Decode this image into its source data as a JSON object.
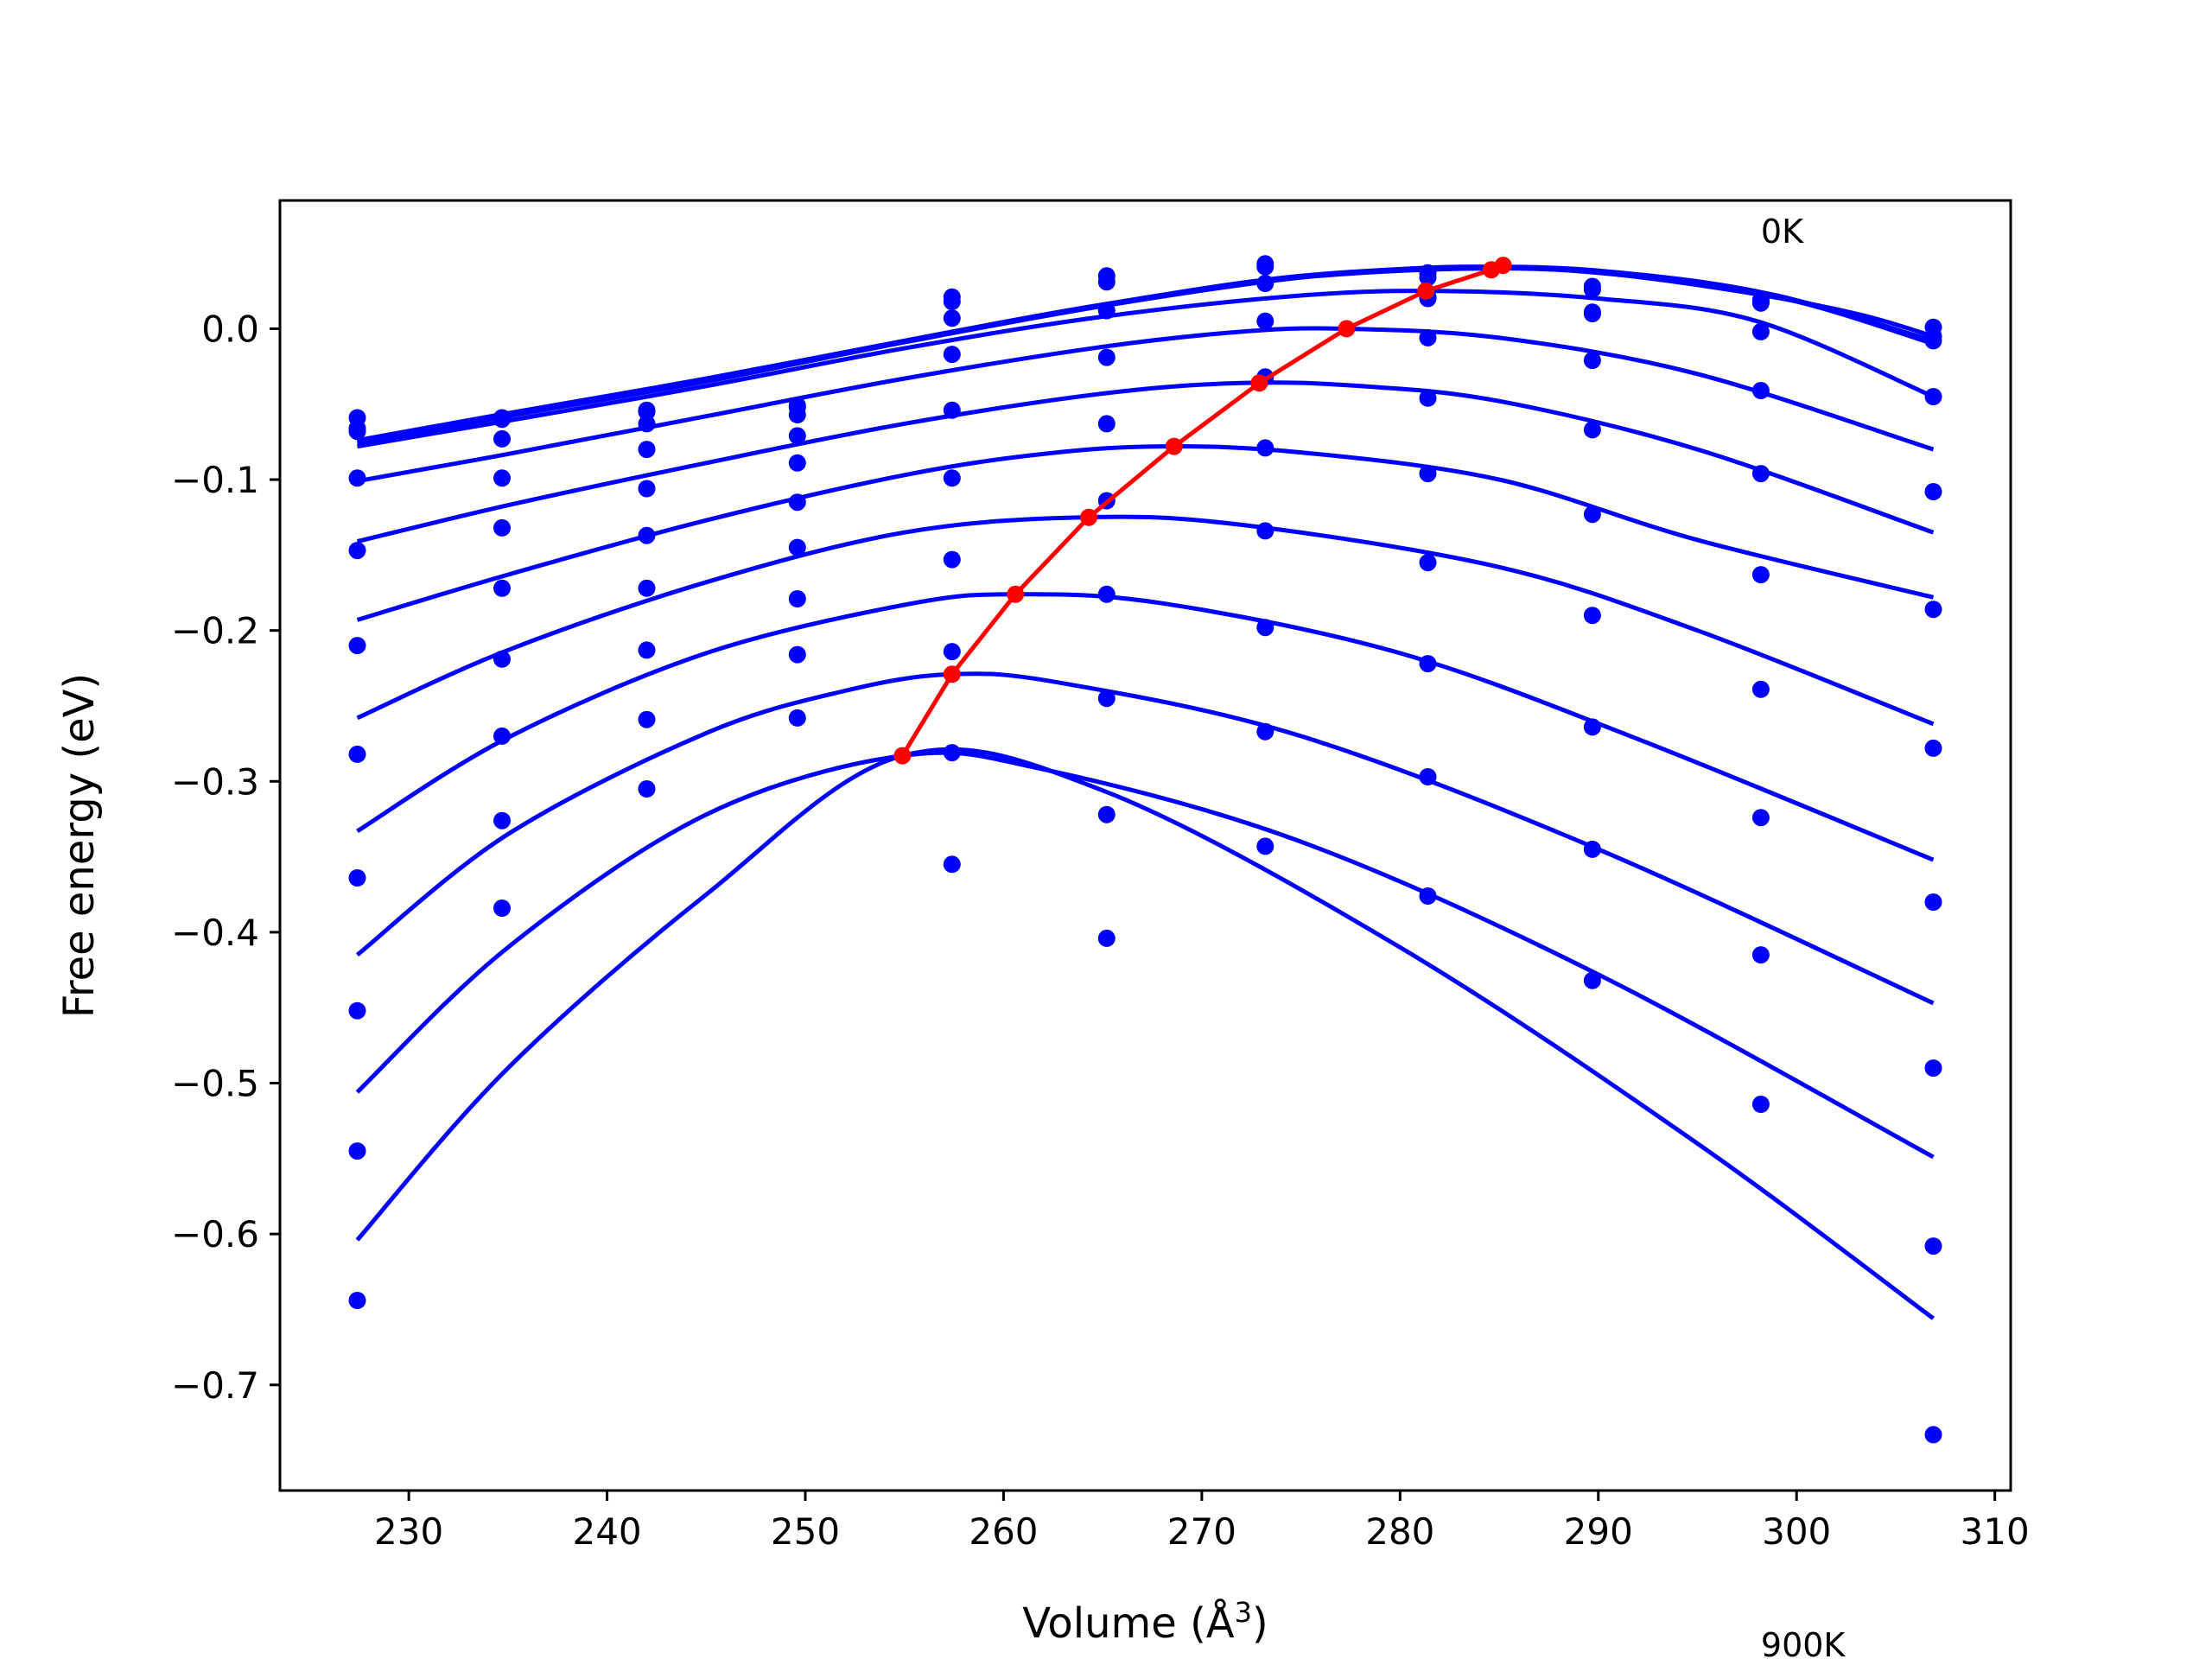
{
  "chart_data": {
    "type": "scatter",
    "title": "",
    "xlabel": "Volume (Å",
    "xlabel_sup": "3",
    "xlabel_close": ")",
    "ylabel": "Free energy (eV)",
    "xlim": [
      223.5,
      310.8
    ],
    "ylim": [
      -0.77,
      0.085
    ],
    "x_ticks": [
      230,
      240,
      250,
      260,
      270,
      280,
      290,
      300,
      310
    ],
    "x_tick_labels": [
      "230",
      "240",
      "250",
      "260",
      "270",
      "280",
      "290",
      "300",
      "310"
    ],
    "y_ticks": [
      0.0,
      -0.1,
      -0.2,
      -0.3,
      -0.4,
      -0.5,
      -0.6,
      -0.7
    ],
    "y_tick_labels": [
      "0.0",
      "−0.1",
      "−0.2",
      "−0.3",
      "−0.4",
      "−0.5",
      "−0.6",
      "−0.7"
    ],
    "grid": false,
    "annotations": [
      {
        "text": "0K",
        "x": 298.2,
        "y": 0.057
      },
      {
        "text": "900K",
        "x": 298.2,
        "y": -0.88
      }
    ],
    "volumes": [
      227.4,
      234.7,
      242.0,
      249.6,
      257.4,
      265.2,
      273.2,
      281.4,
      289.7,
      298.2,
      306.9
    ],
    "curves": [
      {
        "points": [
          [
            227.4,
            -0.076
          ],
          [
            235,
            -0.058
          ],
          [
            245,
            -0.035
          ],
          [
            255,
            -0.009
          ],
          [
            265,
            0.015
          ],
          [
            275,
            0.034
          ],
          [
            283,
            0.041
          ],
          [
            290,
            0.037
          ],
          [
            297,
            0.025
          ],
          [
            303,
            0.01
          ],
          [
            306.9,
            -0.005
          ]
        ],
        "markers": [
          -0.059,
          -0.059,
          -0.054,
          -0.052,
          0.021,
          0.035,
          0.043,
          0.037,
          0.028,
          0.019,
          0.001
        ]
      },
      {
        "points": [
          [
            227.4,
            -0.075
          ],
          [
            235,
            -0.057
          ],
          [
            245,
            -0.034
          ],
          [
            255,
            -0.008
          ],
          [
            265,
            0.016
          ],
          [
            275,
            0.035
          ],
          [
            285,
            0.041
          ],
          [
            292,
            0.036
          ],
          [
            299,
            0.022
          ],
          [
            306.9,
            -0.008
          ]
        ],
        "markers": [
          -0.066,
          -0.06,
          -0.055,
          -0.051,
          0.018,
          0.031,
          0.041,
          0.034,
          0.026,
          0.018,
          -0.005
        ]
      },
      {
        "points": [
          [
            227.4,
            -0.074
          ],
          [
            235,
            -0.056
          ],
          [
            245,
            -0.033
          ],
          [
            255,
            -0.008
          ],
          [
            265,
            0.016
          ],
          [
            275,
            0.034
          ],
          [
            285,
            0.04
          ],
          [
            293,
            0.034
          ],
          [
            300,
            0.018
          ],
          [
            306.9,
            -0.01
          ]
        ],
        "markers": [
          -0.068,
          -0.073,
          -0.063,
          -0.057,
          0.007,
          0.012,
          0.03,
          0.021,
          0.011,
          0.017,
          -0.008
        ]
      },
      {
        "points": [
          [
            227.4,
            -0.078
          ],
          [
            235,
            -0.061
          ],
          [
            245,
            -0.038
          ],
          [
            255,
            -0.013
          ],
          [
            265,
            0.008
          ],
          [
            275,
            0.022
          ],
          [
            282,
            0.025
          ],
          [
            290,
            0.02
          ],
          [
            298,
            0.005
          ],
          [
            306.9,
            -0.045
          ]
        ],
        "markers": [
          -0.099,
          -0.099,
          -0.08,
          -0.071,
          -0.017,
          -0.019,
          0.005,
          0.02,
          0.01,
          -0.002,
          -0.045
        ]
      },
      {
        "points": [
          [
            227.4,
            -0.101
          ],
          [
            235,
            -0.083
          ],
          [
            245,
            -0.058
          ],
          [
            255,
            -0.033
          ],
          [
            265,
            -0.012
          ],
          [
            272,
            -0.002
          ],
          [
            277,
            0.0
          ],
          [
            285,
            -0.006
          ],
          [
            295,
            -0.03
          ],
          [
            306.9,
            -0.08
          ]
        ],
        "markers": [
          -0.147,
          -0.132,
          -0.106,
          -0.089,
          -0.054,
          -0.063,
          -0.032,
          -0.006,
          -0.021,
          -0.041,
          -0.108
        ]
      },
      {
        "points": [
          [
            227.4,
            -0.141
          ],
          [
            235,
            -0.117
          ],
          [
            245,
            -0.089
          ],
          [
            255,
            -0.063
          ],
          [
            265,
            -0.043
          ],
          [
            272,
            -0.036
          ],
          [
            278,
            -0.038
          ],
          [
            285,
            -0.048
          ],
          [
            295,
            -0.08
          ],
          [
            306.9,
            -0.135
          ]
        ],
        "markers": [
          -0.21,
          -0.172,
          -0.137,
          -0.115,
          -0.099,
          -0.114,
          -0.079,
          -0.046,
          -0.067,
          -0.096,
          -0.186
        ]
      },
      {
        "points": [
          [
            227.4,
            -0.193
          ],
          [
            235,
            -0.163
          ],
          [
            245,
            -0.127
          ],
          [
            255,
            -0.097
          ],
          [
            262,
            -0.083
          ],
          [
            268,
            -0.078
          ],
          [
            275,
            -0.082
          ],
          [
            285,
            -0.1
          ],
          [
            295,
            -0.14
          ],
          [
            306.9,
            -0.178
          ]
        ],
        "markers": [
          -0.282,
          -0.219,
          -0.172,
          -0.145,
          -0.153,
          -0.176,
          -0.134,
          -0.096,
          -0.123,
          -0.163,
          -0.278
        ]
      },
      {
        "points": [
          [
            227.4,
            -0.258
          ],
          [
            235,
            -0.213
          ],
          [
            245,
            -0.168
          ],
          [
            255,
            -0.135
          ],
          [
            264,
            -0.125
          ],
          [
            272,
            -0.13
          ],
          [
            285,
            -0.158
          ],
          [
            295,
            -0.2
          ],
          [
            306.9,
            -0.262
          ]
        ],
        "markers": [
          -0.364,
          -0.27,
          -0.213,
          -0.179,
          -0.214,
          -0.245,
          -0.198,
          -0.155,
          -0.19,
          -0.239,
          -0.38
        ]
      },
      {
        "points": [
          [
            227.4,
            -0.333
          ],
          [
            235,
            -0.271
          ],
          [
            245,
            -0.215
          ],
          [
            255,
            -0.183
          ],
          [
            260.5,
            -0.176
          ],
          [
            268,
            -0.182
          ],
          [
            280,
            -0.215
          ],
          [
            292,
            -0.272
          ],
          [
            306.9,
            -0.352
          ]
        ],
        "markers": [
          -0.452,
          -0.326,
          -0.259,
          -0.216,
          -0.281,
          -0.322,
          -0.267,
          -0.222,
          -0.264,
          -0.324,
          -0.49
        ]
      },
      {
        "points": [
          [
            227.4,
            -0.415
          ],
          [
            235,
            -0.335
          ],
          [
            245,
            -0.268
          ],
          [
            252,
            -0.24
          ],
          [
            257.4,
            -0.229
          ],
          [
            263,
            -0.235
          ],
          [
            275,
            -0.27
          ],
          [
            290,
            -0.345
          ],
          [
            306.9,
            -0.447
          ]
        ],
        "markers": [
          -0.545,
          -0.384,
          -0.305,
          -0.258,
          -0.355,
          -0.404,
          -0.343,
          -0.297,
          -0.345,
          -0.415,
          -0.608
        ]
      },
      {
        "points": [
          [
            227.4,
            -0.506
          ],
          [
            235,
            -0.41
          ],
          [
            245,
            -0.322
          ],
          [
            254.9,
            -0.283
          ],
          [
            262,
            -0.292
          ],
          [
            275,
            -0.34
          ],
          [
            290,
            -0.428
          ],
          [
            306.9,
            -0.549
          ]
        ],
        "markers": [
          -0.644,
          null,
          null,
          null,
          null,
          null,
          null,
          -0.376,
          -0.432,
          -0.514,
          -0.733
        ]
      },
      {
        "points": [
          [
            227.4,
            -0.604
          ],
          [
            235,
            -0.49
          ],
          [
            245,
            -0.375
          ],
          [
            254.9,
            -0.283
          ],
          [
            265,
            -0.306
          ],
          [
            280,
            -0.41
          ],
          [
            295,
            -0.54
          ],
          [
            306.9,
            -0.656
          ]
        ],
        "markers": []
      }
    ],
    "minima_line": {
      "x": [
        285.2,
        284.6,
        281.3,
        277.3,
        272.9,
        268.6,
        264.3,
        260.6,
        257.4,
        254.9
      ],
      "y": [
        0.042,
        0.039,
        0.025,
        0.0,
        -0.036,
        -0.078,
        -0.125,
        -0.176,
        -0.229,
        -0.283
      ]
    },
    "colors": {
      "curve": "#0000ff",
      "markers": "#0000ff",
      "minima": "#ff0000",
      "frame": "#000000"
    }
  }
}
